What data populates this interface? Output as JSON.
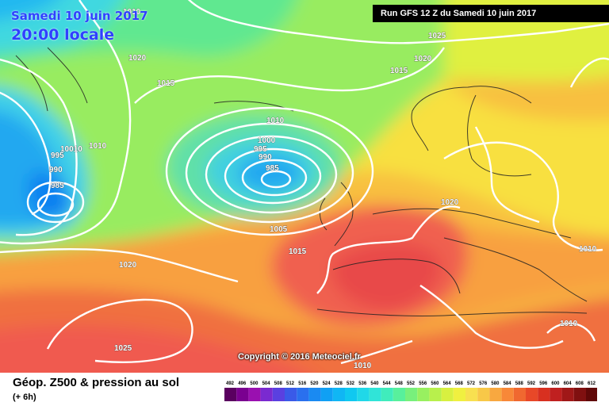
{
  "header": {
    "date": "Samedi 10 juin 2017",
    "time": "20:00 locale",
    "run": "Run GFS 12 Z du Samedi 10 juin 2017"
  },
  "copyright": "Copyright © 2016 Meteociel.fr",
  "legend": {
    "title": "Géop. Z500 & pression au sol",
    "subtitle": "(+ 6h)",
    "ticks": [
      "492",
      "496",
      "500",
      "504",
      "508",
      "512",
      "516",
      "520",
      "524",
      "528",
      "532",
      "536",
      "540",
      "544",
      "548",
      "552",
      "556",
      "560",
      "564",
      "568",
      "572",
      "576",
      "580",
      "584",
      "588",
      "592",
      "596",
      "600",
      "604",
      "608",
      "612"
    ],
    "colors": [
      "#5a0060",
      "#7a0090",
      "#9a10b0",
      "#7a2ad0",
      "#5a40e0",
      "#3a5ae8",
      "#2a70ee",
      "#1a8af2",
      "#10a0f4",
      "#10b6f4",
      "#10c8f0",
      "#20d8e8",
      "#30e4d8",
      "#40ecbc",
      "#58f09c",
      "#78f07c",
      "#98f060",
      "#b8f04c",
      "#d8f040",
      "#f0f040",
      "#f8e050",
      "#f8c848",
      "#f8a840",
      "#f88838",
      "#f06830",
      "#e84828",
      "#d83020",
      "#c02020",
      "#a01818",
      "#801010",
      "#600808"
    ]
  },
  "isobars": {
    "labels": [
      "1010",
      "1020",
      "1015",
      "1025",
      "1020",
      "1015",
      "1010",
      "995",
      "10010",
      "1010",
      "990",
      "985",
      "1000",
      "995",
      "990",
      "985",
      "1005",
      "1015",
      "1020",
      "1020",
      "1025",
      "1010",
      "1010",
      "1010"
    ]
  },
  "colors": {
    "isobar": "#ffffff",
    "title_blue": "#3040ff",
    "banner_bg": "#000000"
  }
}
